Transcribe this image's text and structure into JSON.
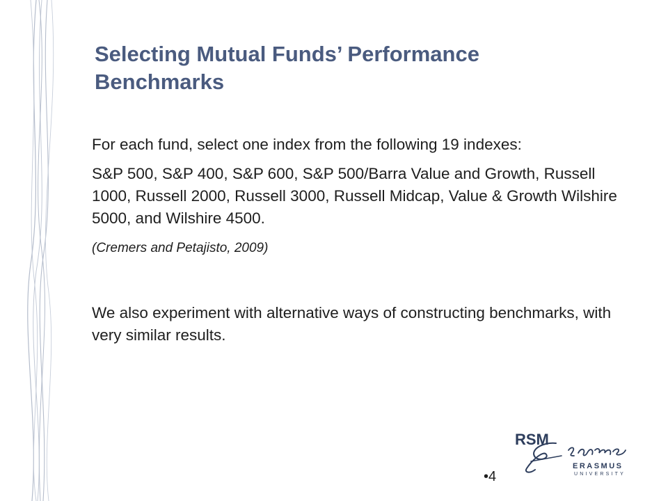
{
  "slide": {
    "title": "Selecting Mutual Funds’ Performance Benchmarks",
    "paragraphs": {
      "intro": "For each fund, select one index from the following 19 indexes:",
      "indexes": "S&P 500, S&P 400, S&P 600, S&P 500/Barra Value and Growth, Russell 1000, Russell 2000, Russell 3000, Russell Midcap, Value & Growth Wilshire 5000, and Wilshire 4500.",
      "citation": "(Cremers and Petajisto, 2009)",
      "alternative": "We also experiment with alternative ways of constructing benchmarks, with very similar results."
    },
    "page_number": "•4"
  },
  "logo": {
    "rsm": "RSM",
    "erasmus": "ERASMUS",
    "university": "UNIVERSITY",
    "color": "#2d3d5c"
  },
  "colors": {
    "title": "#4a5b7f",
    "body_text": "#1e1e1e",
    "decor_lines": "#b4bccb"
  }
}
